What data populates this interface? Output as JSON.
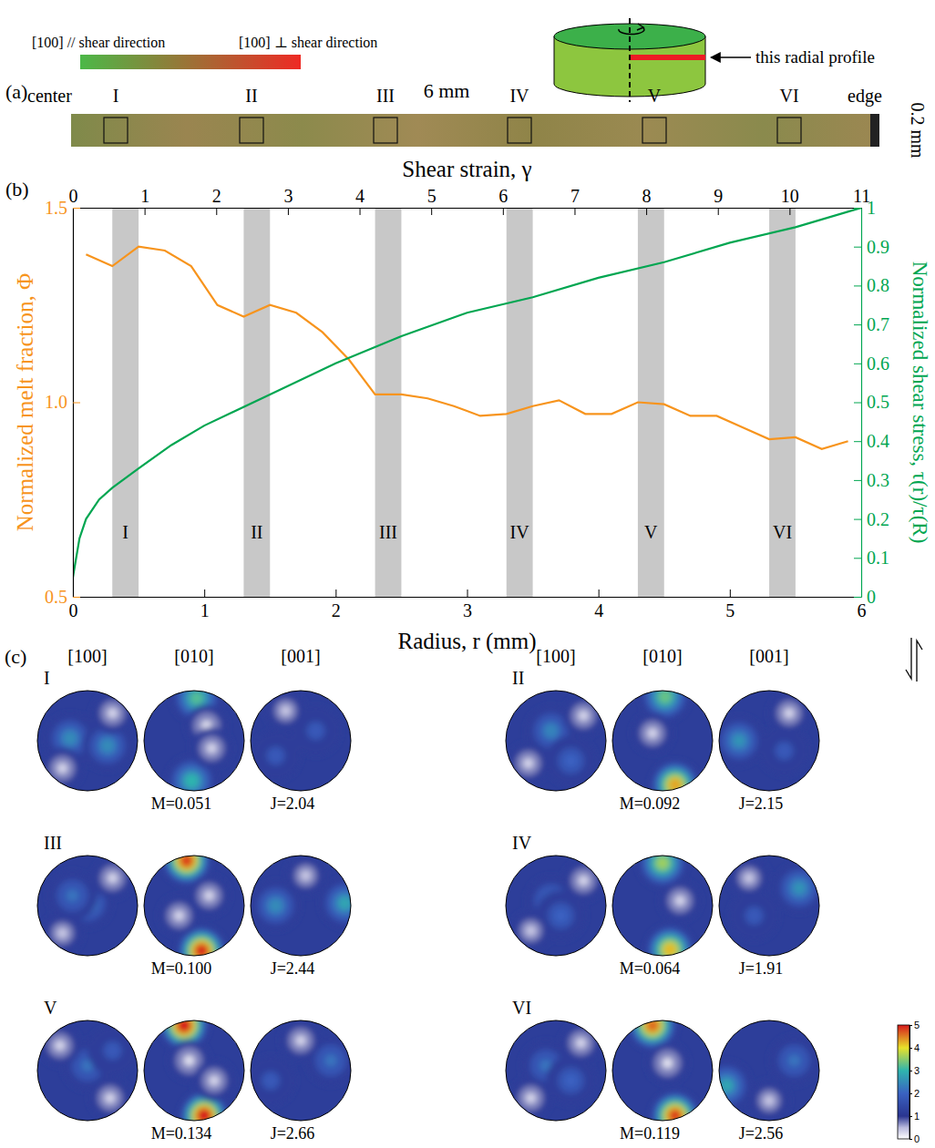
{
  "panel_letters": [
    "(a)",
    "(b)",
    "(c)"
  ],
  "panel_a": {
    "legend": {
      "left_label": "[100] // shear direction",
      "right_label": "[100] ⊥ shear direction",
      "colors": [
        "#4cb848",
        "#ee2a24"
      ]
    },
    "schematic_label": "this radial profile",
    "center_label": "center",
    "edge_label": "edge",
    "length_label": "6 mm",
    "thickness_label": "0.2 mm",
    "regions": [
      "I",
      "II",
      "III",
      "IV",
      "V",
      "VI"
    ]
  },
  "chart_data": {
    "type": "line",
    "x_label": "Radius, r (mm)",
    "x2_label": "Shear strain, γ",
    "y_label": "Normalized melt fraction, Φ",
    "y2_label": "Normalized shear stress, τ(r)/τ(R)",
    "xlim": [
      0,
      6
    ],
    "xticks": [
      0,
      1,
      2,
      3,
      4,
      5,
      6
    ],
    "x2lim": [
      0,
      11
    ],
    "x2ticks": [
      0,
      1,
      2,
      3,
      4,
      5,
      6,
      7,
      8,
      9,
      10,
      11
    ],
    "ylim": [
      0.5,
      1.5
    ],
    "yticks": [
      0.5,
      {
        "value": 1,
        "label": "1.0"
      },
      1.5
    ],
    "y2lim": [
      0,
      1
    ],
    "y2ticks": [
      0,
      0.1,
      0.2,
      0.3,
      0.4,
      0.5,
      0.6,
      0.7,
      0.8,
      0.9,
      1
    ],
    "bands": [
      {
        "x": [
          0.3,
          0.5
        ],
        "label": "I"
      },
      {
        "x": [
          1.3,
          1.5
        ],
        "label": "II"
      },
      {
        "x": [
          2.3,
          2.5
        ],
        "label": "III"
      },
      {
        "x": [
          3.3,
          3.5
        ],
        "label": "IV"
      },
      {
        "x": [
          4.3,
          4.5
        ],
        "label": "V"
      },
      {
        "x": [
          5.3,
          5.5
        ],
        "label": "VI"
      }
    ],
    "series": [
      {
        "color": "#f7941d",
        "x": [
          0.1,
          0.3,
          0.5,
          0.7,
          0.9,
          1.1,
          1.3,
          1.5,
          1.7,
          1.9,
          2.1,
          2.3,
          2.5,
          2.7,
          2.9,
          3.1,
          3.3,
          3.5,
          3.7,
          3.9,
          4.1,
          4.3,
          4.5,
          4.7,
          4.9,
          5.1,
          5.3,
          5.5,
          5.7,
          5.9
        ],
        "values": [
          1.38,
          1.35,
          1.4,
          1.39,
          1.35,
          1.25,
          1.22,
          1.25,
          1.23,
          1.18,
          1.11,
          1.02,
          1.02,
          1.01,
          0.99,
          0.965,
          0.97,
          0.99,
          1.005,
          0.97,
          0.97,
          1.0,
          0.995,
          0.965,
          0.965,
          0.935,
          0.905,
          0.91,
          0.88,
          0.9
        ]
      },
      {
        "color": "#00a651",
        "axis": "y2",
        "x": [
          0,
          0.05,
          0.1,
          0.2,
          0.3,
          0.5,
          0.75,
          1,
          1.5,
          2,
          2.5,
          3,
          3.5,
          4,
          4.5,
          5,
          5.5,
          6
        ],
        "values": [
          0.05,
          0.15,
          0.2,
          0.25,
          0.28,
          0.33,
          0.39,
          0.44,
          0.52,
          0.6,
          0.67,
          0.73,
          0.77,
          0.82,
          0.86,
          0.91,
          0.95,
          1.0
        ]
      }
    ]
  },
  "panel_c": {
    "pole_labels": [
      "[100]",
      "[010]",
      "[001]"
    ],
    "background_density": 1.2,
    "colorbar": {
      "range": [
        0,
        5
      ],
      "ticks": [
        0,
        1,
        2,
        3,
        4,
        5
      ]
    },
    "figures": [
      {
        "label": "I",
        "M": "M=0.051",
        "J": "J=2.04",
        "poles": [
          [
            {
              "x": 0.0,
              "y": 0.0,
              "density": 2.3
            },
            {
              "x": -0.35,
              "y": 0.05,
              "density": 2.5
            },
            {
              "x": 0.4,
              "y": -0.1,
              "density": 2.5
            },
            {
              "x": 0.5,
              "y": 0.55,
              "density": 0.3
            },
            {
              "x": -0.5,
              "y": -0.55,
              "density": 0.3
            }
          ],
          [
            {
              "x": 0.05,
              "y": 0.85,
              "density": 3.2
            },
            {
              "x": -0.05,
              "y": -0.8,
              "density": 3.0
            },
            {
              "x": 0.25,
              "y": 0.3,
              "density": 0.2
            },
            {
              "x": 0.35,
              "y": -0.15,
              "density": 0.3
            }
          ],
          [
            {
              "x": 0.3,
              "y": 0.2,
              "density": 1.8
            },
            {
              "x": -0.5,
              "y": -0.3,
              "density": 1.8
            },
            {
              "x": -0.3,
              "y": 0.6,
              "density": 0.4
            }
          ]
        ]
      },
      {
        "label": "II",
        "M": "M=0.092",
        "J": "J=2.15",
        "poles": [
          [
            {
              "x": -0.1,
              "y": 0.2,
              "density": 2.4
            },
            {
              "x": 0.3,
              "y": -0.4,
              "density": 2.0
            },
            {
              "x": 0.55,
              "y": 0.5,
              "density": 0.3
            },
            {
              "x": -0.55,
              "y": -0.45,
              "density": 0.3
            }
          ],
          [
            {
              "x": 0.05,
              "y": 0.88,
              "density": 3.3
            },
            {
              "x": 0.25,
              "y": -0.88,
              "density": 4.3
            },
            {
              "x": -0.2,
              "y": 0.15,
              "density": 0.3
            }
          ],
          [
            {
              "x": -0.6,
              "y": 0.0,
              "density": 2.6
            },
            {
              "x": 0.3,
              "y": -0.2,
              "density": 1.8
            },
            {
              "x": 0.4,
              "y": 0.55,
              "density": 0.3
            }
          ]
        ]
      },
      {
        "label": "III",
        "M": "M=0.100",
        "J": "J=2.44",
        "poles": [
          [
            {
              "x": 0.0,
              "y": 0.05,
              "density": 2.5
            },
            {
              "x": -0.3,
              "y": 0.2,
              "density": 2.2
            },
            {
              "x": 0.5,
              "y": 0.55,
              "density": 0.3
            },
            {
              "x": -0.5,
              "y": -0.55,
              "density": 0.4
            }
          ],
          [
            {
              "x": -0.15,
              "y": 0.9,
              "density": 4.8
            },
            {
              "x": 0.15,
              "y": -0.9,
              "density": 4.9
            },
            {
              "x": 0.3,
              "y": 0.2,
              "density": 0.3
            },
            {
              "x": -0.3,
              "y": -0.2,
              "density": 0.3
            }
          ],
          [
            {
              "x": -0.5,
              "y": 0.0,
              "density": 2.5
            },
            {
              "x": 0.88,
              "y": 0.05,
              "density": 2.8
            },
            {
              "x": 0.1,
              "y": 0.6,
              "density": 0.4
            }
          ]
        ]
      },
      {
        "label": "IV",
        "M": "M=0.064",
        "J": "J=1.91",
        "poles": [
          [
            {
              "x": -0.1,
              "y": 0.1,
              "density": 2.3
            },
            {
              "x": 0.1,
              "y": -0.2,
              "density": 2.0
            },
            {
              "x": 0.55,
              "y": 0.5,
              "density": 0.3
            },
            {
              "x": -0.5,
              "y": -0.5,
              "density": 0.4
            }
          ],
          [
            {
              "x": 0.0,
              "y": 0.85,
              "density": 3.6
            },
            {
              "x": 0.15,
              "y": -0.88,
              "density": 4.2
            },
            {
              "x": 0.35,
              "y": 0.1,
              "density": 0.3
            }
          ],
          [
            {
              "x": 0.6,
              "y": 0.35,
              "density": 2.6
            },
            {
              "x": -0.3,
              "y": -0.2,
              "density": 1.8
            },
            {
              "x": -0.4,
              "y": 0.55,
              "density": 0.4
            }
          ]
        ]
      },
      {
        "label": "V",
        "M": "M=0.134",
        "J": "J=2.66",
        "poles": [
          [
            {
              "x": 0.0,
              "y": 0.1,
              "density": 2.2
            },
            {
              "x": 0.5,
              "y": 0.4,
              "density": 1.8
            },
            {
              "x": -0.55,
              "y": 0.5,
              "density": 0.3
            },
            {
              "x": 0.45,
              "y": -0.55,
              "density": 0.3
            }
          ],
          [
            {
              "x": -0.2,
              "y": 0.9,
              "density": 5.0
            },
            {
              "x": 0.2,
              "y": -0.9,
              "density": 5.0
            },
            {
              "x": -0.1,
              "y": 0.2,
              "density": 0.2
            },
            {
              "x": 0.4,
              "y": -0.2,
              "density": 0.3
            }
          ],
          [
            {
              "x": 0.6,
              "y": 0.2,
              "density": 2.2
            },
            {
              "x": -0.6,
              "y": -0.2,
              "density": 1.8
            },
            {
              "x": 0.0,
              "y": 0.6,
              "density": 0.3
            }
          ]
        ]
      },
      {
        "label": "VI",
        "M": "M=0.119",
        "J": "J=2.56",
        "poles": [
          [
            {
              "x": -0.2,
              "y": 0.1,
              "density": 2.2
            },
            {
              "x": 0.3,
              "y": -0.2,
              "density": 2.0
            },
            {
              "x": 0.5,
              "y": 0.55,
              "density": 0.3
            },
            {
              "x": -0.5,
              "y": -0.55,
              "density": 0.3
            }
          ],
          [
            {
              "x": -0.2,
              "y": 0.9,
              "density": 4.6
            },
            {
              "x": 0.25,
              "y": -0.9,
              "density": 4.8
            },
            {
              "x": 0.1,
              "y": 0.15,
              "density": 0.2
            }
          ],
          [
            {
              "x": -0.85,
              "y": -0.3,
              "density": 2.8
            },
            {
              "x": 0.5,
              "y": 0.2,
              "density": 2.2
            },
            {
              "x": 0.0,
              "y": -0.6,
              "density": 0.4
            }
          ]
        ]
      }
    ]
  }
}
